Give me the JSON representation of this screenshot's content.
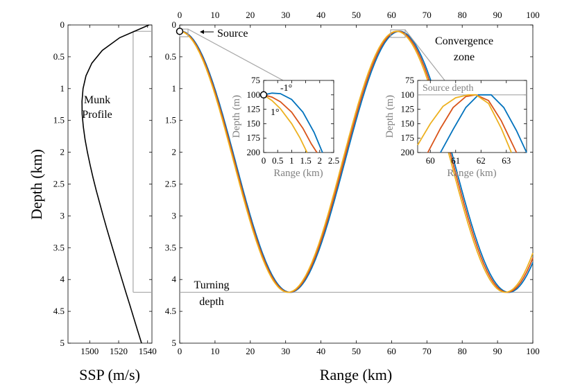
{
  "chart_data": [
    {
      "id": "ssp",
      "type": "line",
      "xlabel": "SSP (m/s)",
      "ylabel": "Depth (km)",
      "xlim": [
        1485,
        1543
      ],
      "ylim": [
        0,
        5
      ],
      "xticks": [
        1500,
        1520,
        1540
      ],
      "yticks": [
        0,
        0.5,
        1,
        1.5,
        2,
        2.5,
        3,
        3.5,
        4,
        4.5,
        5
      ],
      "ytick_labels": [
        "0",
        "0.5",
        "1",
        "1.5",
        "2",
        "2.5",
        "3",
        "3.5",
        "4",
        "4.5",
        "5"
      ],
      "annotation": [
        "Munk",
        "Profile"
      ],
      "series": [
        {
          "x": [
            1541.0,
            1520.7,
            1508.7,
            1501.5,
            1497.4,
            1495.4,
            1494.7,
            1494.8,
            1495.6,
            1496.8,
            1498.4,
            1500.3,
            1502.3,
            1504.5,
            1506.9,
            1509.3,
            1511.8,
            1514.4,
            1517.0,
            1519.6,
            1522.3,
            1525.0,
            1527.7,
            1530.4,
            1533.1,
            1535.8,
            1538.5,
            1541.3
          ],
          "y": [
            0,
            0.2,
            0.4,
            0.6,
            0.8,
            1.0,
            1.2,
            1.4,
            1.6,
            1.8,
            2.0,
            2.2,
            2.4,
            2.6,
            2.8,
            3.0,
            3.2,
            3.4,
            3.6,
            3.8,
            4.0,
            4.2,
            4.4,
            4.6,
            4.8,
            5.0,
            5.0,
            5.0
          ]
        }
      ],
      "guides": {
        "source_depth": 0.1,
        "turning_depth": 4.2,
        "source_speed": 1530
      }
    },
    {
      "id": "rays",
      "type": "line",
      "xlabel": "Range (km)",
      "xlim": [
        0,
        100
      ],
      "ylim": [
        0,
        5
      ],
      "xticks": [
        0,
        10,
        20,
        30,
        40,
        50,
        60,
        70,
        80,
        90,
        100
      ],
      "yticks": [
        0,
        0.5,
        1,
        1.5,
        2,
        2.5,
        3,
        3.5,
        4,
        4.5,
        5
      ],
      "ytick_labels": [
        "0",
        "0.5",
        "1",
        "1.5",
        "2",
        "2.5",
        "3",
        "3.5",
        "4",
        "4.5",
        "5"
      ],
      "annotations": {
        "source": "Source",
        "convergence": [
          "Convergence",
          "zone"
        ],
        "turning": [
          "Turning",
          "depth"
        ]
      },
      "turning_depth": 4.2,
      "source": {
        "x": 0,
        "y": 0.1
      },
      "series": [
        {
          "color": "#0072BD",
          "offset": 0.8
        },
        {
          "color": "#D95319",
          "offset": 0.3
        },
        {
          "color": "#EDB120",
          "offset": -0.2
        }
      ]
    },
    {
      "id": "inset-source",
      "type": "line",
      "xlabel": "Range (km)",
      "ylabel": "Depth (m)",
      "xlim": [
        0,
        2.5
      ],
      "ylim": [
        75,
        200
      ],
      "xticks": [
        0,
        0.5,
        1,
        1.5,
        2,
        2.5
      ],
      "xtick_labels": [
        "0",
        "0.5",
        "1",
        "1.5",
        "2",
        "2.5"
      ],
      "yticks": [
        75,
        100,
        125,
        150,
        175,
        200
      ],
      "annotations": {
        "up": "-1°",
        "down": "1°"
      },
      "series": [
        {
          "name": "-1°",
          "color": "#0072BD",
          "x": [
            0,
            0.3,
            0.6,
            1.0,
            1.4,
            1.8,
            2.1
          ],
          "y": [
            100,
            97,
            98,
            108,
            130,
            165,
            200
          ]
        },
        {
          "name": "",
          "color": "#D95319",
          "x": [
            0,
            0.3,
            0.6,
            1.0,
            1.4,
            1.7,
            1.9
          ],
          "y": [
            100,
            104,
            112,
            130,
            158,
            185,
            200
          ]
        },
        {
          "name": "1°",
          "color": "#EDB120",
          "x": [
            0,
            0.3,
            0.6,
            1.0,
            1.3,
            1.55
          ],
          "y": [
            100,
            110,
            124,
            150,
            175,
            200
          ]
        }
      ]
    },
    {
      "id": "inset-cz",
      "type": "line",
      "xlabel": "Range (km)",
      "ylabel": "Depth (m)",
      "xlim": [
        59.5,
        63.8
      ],
      "ylim": [
        75,
        200
      ],
      "xticks": [
        60,
        61,
        62,
        63
      ],
      "yticks": [
        75,
        100,
        125,
        150,
        175,
        200
      ],
      "annotation": "Source depth",
      "source_depth": 100,
      "series": [
        {
          "color": "#0072BD",
          "x": [
            60.4,
            60.9,
            61.4,
            61.9,
            62.4,
            62.9,
            63.4,
            63.8
          ],
          "y": [
            200,
            160,
            122,
            100,
            100,
            122,
            162,
            200
          ]
        },
        {
          "color": "#D95319",
          "x": [
            59.9,
            60.4,
            60.9,
            61.4,
            61.8,
            62.3,
            62.8,
            63.4
          ],
          "y": [
            200,
            158,
            122,
            103,
            100,
            110,
            145,
            200
          ]
        },
        {
          "color": "#EDB120",
          "x": [
            59.5,
            60.0,
            60.5,
            61.0,
            61.5,
            61.8,
            62.3,
            62.8,
            63.2
          ],
          "y": [
            187,
            150,
            120,
            105,
            100,
            100,
            115,
            158,
            200
          ]
        }
      ]
    }
  ]
}
